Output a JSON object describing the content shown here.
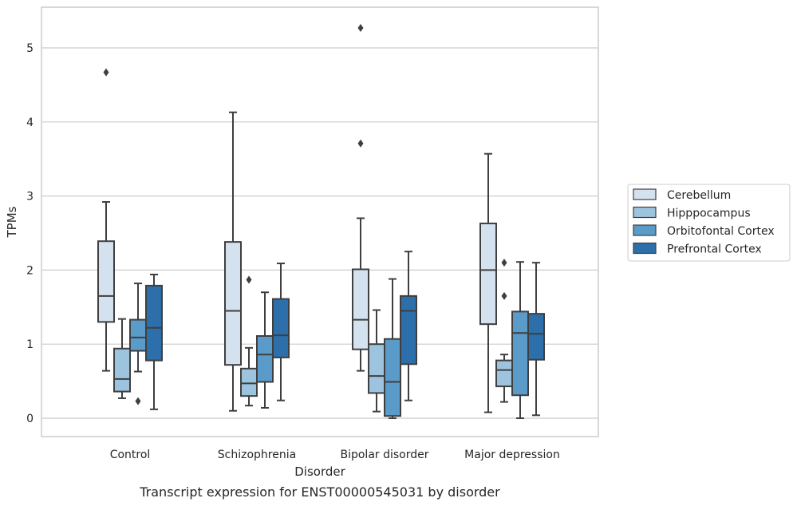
{
  "chart_data": {
    "type": "box",
    "title": "",
    "caption": "Transcript expression for ENST00000545031 by disorder",
    "xlabel": "Disorder",
    "ylabel": "TPMs",
    "ylim": [
      -0.25,
      5.55
    ],
    "yticks": [
      0,
      1,
      2,
      3,
      4,
      5
    ],
    "grid": true,
    "legend_position": "right",
    "categories": [
      "Control",
      "Schizophrenia",
      "Bipolar disorder",
      "Major depression"
    ],
    "series": [
      {
        "name": "Cerebellum",
        "color": "#d4e2f0",
        "boxes": [
          {
            "whisker_low": 0.64,
            "q1": 1.3,
            "median": 1.65,
            "q3": 2.39,
            "whisker_high": 2.92,
            "outliers": [
              4.67
            ]
          },
          {
            "whisker_low": 0.1,
            "q1": 0.72,
            "median": 1.45,
            "q3": 2.38,
            "whisker_high": 4.13,
            "outliers": []
          },
          {
            "whisker_low": 0.64,
            "q1": 0.93,
            "median": 1.33,
            "q3": 2.01,
            "whisker_high": 2.7,
            "outliers": [
              3.71,
              5.27
            ]
          },
          {
            "whisker_low": 0.08,
            "q1": 1.27,
            "median": 2.0,
            "q3": 2.63,
            "whisker_high": 3.57,
            "outliers": []
          }
        ]
      },
      {
        "name": "Hipppocampus",
        "color": "#9dc4df",
        "boxes": [
          {
            "whisker_low": 0.27,
            "q1": 0.36,
            "median": 0.53,
            "q3": 0.94,
            "whisker_high": 1.34,
            "outliers": []
          },
          {
            "whisker_low": 0.17,
            "q1": 0.3,
            "median": 0.47,
            "q3": 0.67,
            "whisker_high": 0.95,
            "outliers": [
              1.87
            ]
          },
          {
            "whisker_low": 0.09,
            "q1": 0.34,
            "median": 0.57,
            "q3": 1.0,
            "whisker_high": 1.46,
            "outliers": []
          },
          {
            "whisker_low": 0.22,
            "q1": 0.43,
            "median": 0.65,
            "q3": 0.78,
            "whisker_high": 0.86,
            "outliers": [
              1.65,
              2.1
            ]
          }
        ]
      },
      {
        "name": "Orbitofontal Cortex",
        "color": "#5b9bc9",
        "boxes": [
          {
            "whisker_low": 0.63,
            "q1": 0.91,
            "median": 1.09,
            "q3": 1.33,
            "whisker_high": 1.82,
            "outliers": [
              0.23
            ]
          },
          {
            "whisker_low": 0.14,
            "q1": 0.49,
            "median": 0.86,
            "q3": 1.11,
            "whisker_high": 1.7,
            "outliers": []
          },
          {
            "whisker_low": 0.0,
            "q1": 0.03,
            "median": 0.49,
            "q3": 1.07,
            "whisker_high": 1.88,
            "outliers": []
          },
          {
            "whisker_low": 0.0,
            "q1": 0.31,
            "median": 1.15,
            "q3": 1.44,
            "whisker_high": 2.11,
            "outliers": []
          }
        ]
      },
      {
        "name": "Prefrontal Cortex",
        "color": "#2c6fab",
        "boxes": [
          {
            "whisker_low": 0.12,
            "q1": 0.78,
            "median": 1.22,
            "q3": 1.79,
            "whisker_high": 1.94,
            "outliers": []
          },
          {
            "whisker_low": 0.24,
            "q1": 0.82,
            "median": 1.12,
            "q3": 1.61,
            "whisker_high": 2.09,
            "outliers": []
          },
          {
            "whisker_low": 0.24,
            "q1": 0.73,
            "median": 1.45,
            "q3": 1.65,
            "whisker_high": 2.25,
            "outliers": []
          },
          {
            "whisker_low": 0.04,
            "q1": 0.79,
            "median": 1.14,
            "q3": 1.41,
            "whisker_high": 2.1,
            "outliers": []
          }
        ]
      }
    ]
  }
}
